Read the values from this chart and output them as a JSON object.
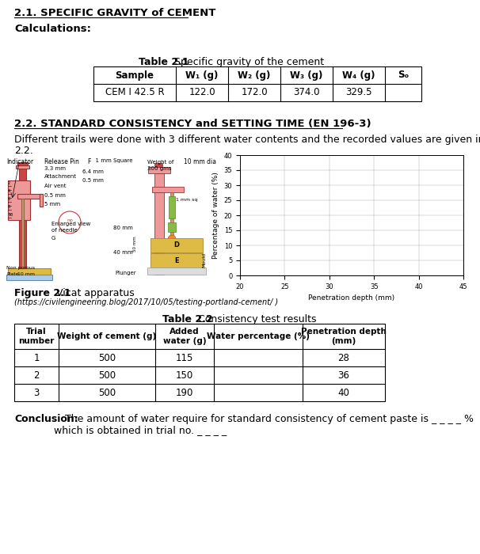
{
  "section1_title": "2.1. SPECIFIC GRAVITY of CEMENT",
  "calculations_label": "Calculations:",
  "table1_caption_bold": "Table 2.1",
  "table1_caption_normal": " Specific gravity of the cement",
  "table1_headers": [
    "Sample",
    "W₁ (g)",
    "W₂ (g)",
    "W₃ (g)",
    "W₄ (g)",
    "Sₒ"
  ],
  "table1_data": [
    [
      "CEM I 42.5 R",
      "122.0",
      "172.0",
      "374.0",
      "329.5",
      ""
    ]
  ],
  "section2_title": "2.2. STANDARD CONSISTENCY and SETTING TIME (EN 196-3)",
  "graph_xlabel": "Penetration depth (mm)",
  "graph_ylabel": "Percentage of water (%)",
  "graph_xlim": [
    20,
    45
  ],
  "graph_ylim": [
    0,
    40
  ],
  "graph_xticks": [
    20,
    25,
    30,
    35,
    40,
    45
  ],
  "graph_yticks": [
    0,
    5,
    10,
    15,
    20,
    25,
    30,
    35,
    40
  ],
  "figure_caption_bold": "Figure 2.1",
  "figure_caption_normal": " Vicat apparatus",
  "figure_caption_url": "(https://civilengineering.blog/2017/10/05/testing-portland-cement/ )",
  "table2_caption_bold": "Table 2.2",
  "table2_caption_normal": " Consistency test results",
  "table2_headers": [
    "Trial\nnumber",
    "Weight of cement (g)",
    "Added\nwater (g)",
    "Water percentage (%)",
    "Penetration depth\n(mm)"
  ],
  "table2_data": [
    [
      "1",
      "500",
      "115",
      "",
      "28"
    ],
    [
      "2",
      "500",
      "150",
      "",
      "36"
    ],
    [
      "3",
      "500",
      "190",
      "",
      "40"
    ]
  ],
  "conclusion_bold": "Conclusion:",
  "vicat_red": "#CC4444",
  "vicat_red_light": "#EE9999",
  "vicat_green": "#88BB44",
  "vicat_yellow": "#DDBB44",
  "vicat_orange": "#EE8833",
  "vicat_blue": "#AACCEE",
  "vicat_tan": "#CC9966",
  "bg_color": "#ffffff"
}
